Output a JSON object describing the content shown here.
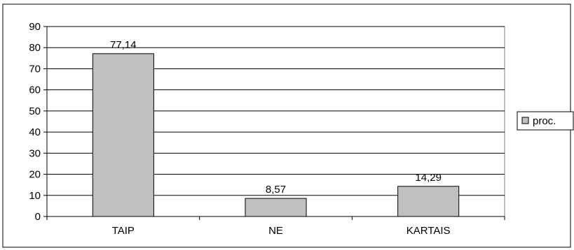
{
  "chart_data": {
    "type": "bar",
    "categories": [
      "TAIP",
      "NE",
      "KARTAIS"
    ],
    "series": [
      {
        "name": "proc.",
        "values": [
          77.14,
          8.57,
          14.29
        ]
      }
    ],
    "data_labels": [
      "77,14",
      "8,57",
      "14,29"
    ],
    "ylim": [
      0,
      90
    ],
    "yticks": [
      "0",
      "10",
      "20",
      "30",
      "40",
      "50",
      "60",
      "70",
      "80",
      "90"
    ],
    "grid": true,
    "legend_position": "right",
    "bar_color": "#c0c0c0",
    "border_color": "#000000"
  }
}
